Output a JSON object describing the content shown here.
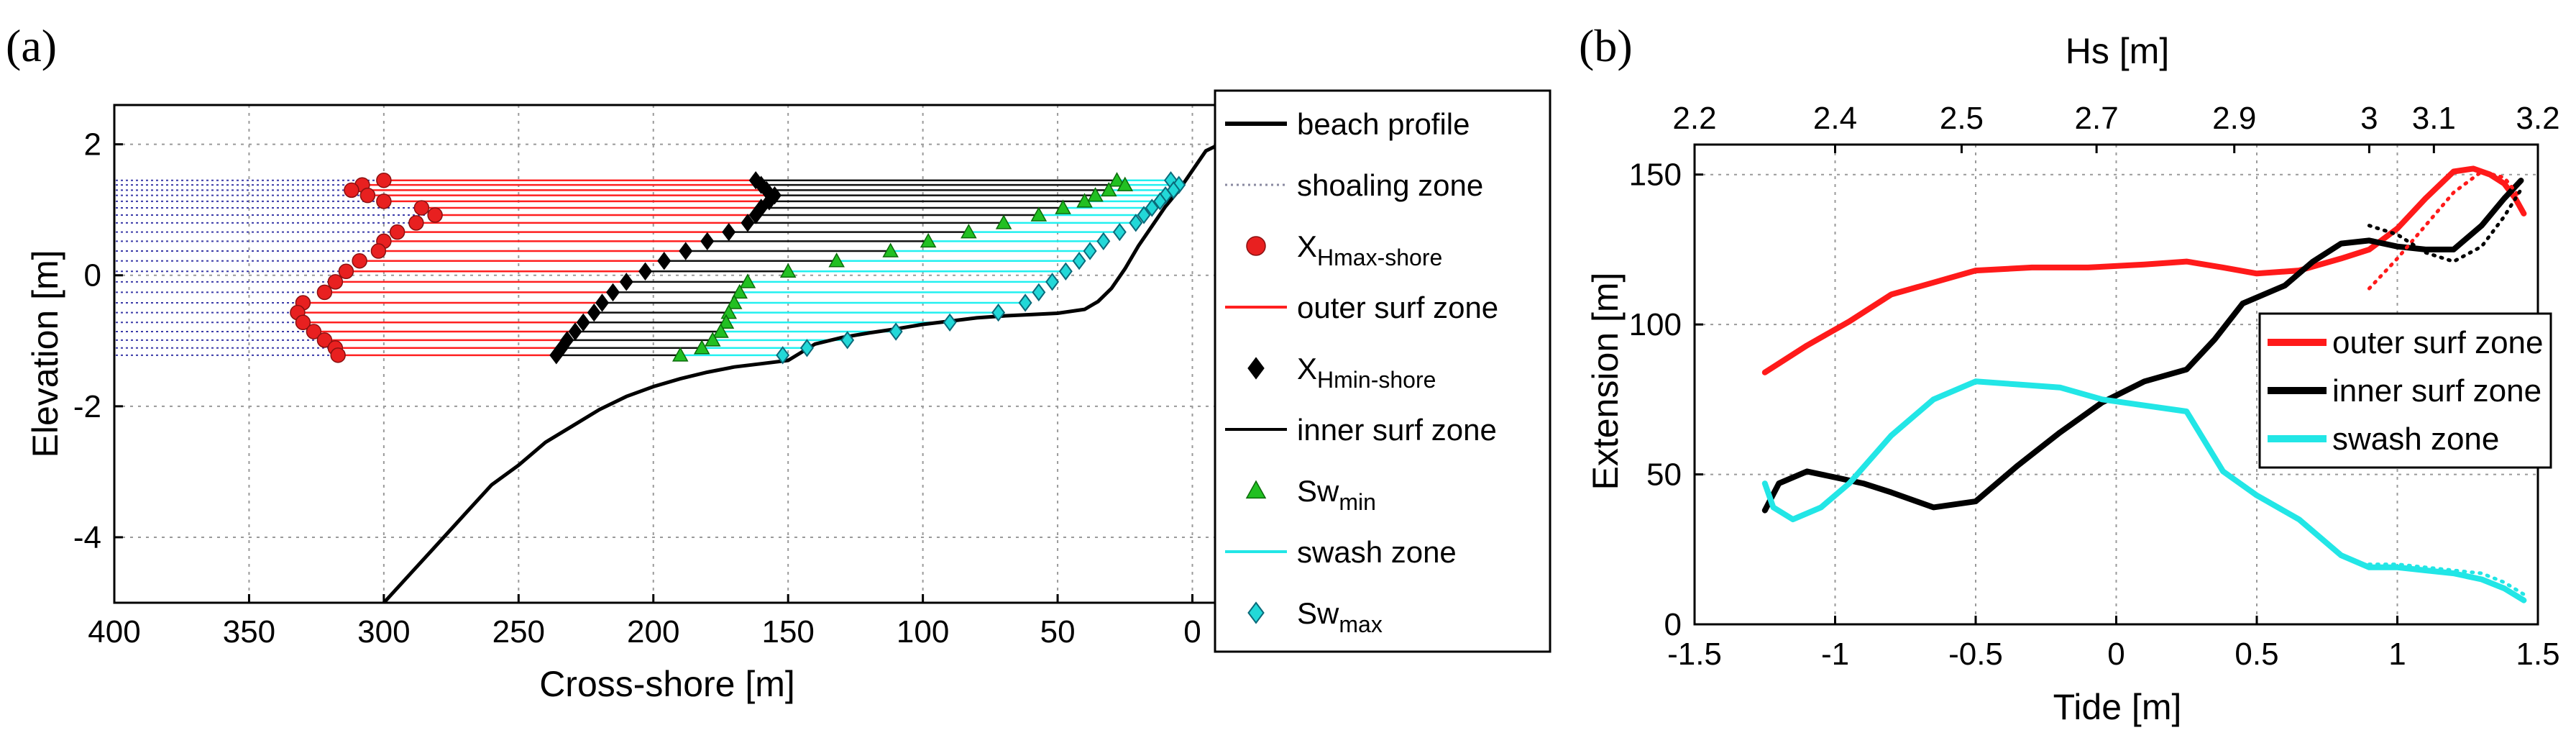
{
  "chart_data": [
    {
      "type": "line",
      "panel_label": "(a)",
      "xlabel": "Cross-shore [m]",
      "ylabel": "Elevation [m]",
      "xlim": [
        400,
        -10
      ],
      "ylim": [
        -5,
        2.6
      ],
      "x_reversed": true,
      "grid": true,
      "xticks": [
        400,
        350,
        300,
        250,
        200,
        150,
        100,
        50,
        0
      ],
      "xtick_labels": [
        "400",
        "350",
        "300",
        "250",
        "200",
        "150",
        "100",
        "50",
        "0"
      ],
      "yticks": [
        2,
        0,
        -2,
        -4
      ],
      "ytick_labels": [
        "2",
        "0",
        "-2",
        "-4"
      ],
      "legend": {
        "placement": "outside-right",
        "entries": [
          {
            "key": "beach_profile",
            "label": "beach profile",
            "style": "line",
            "color": "#000000"
          },
          {
            "key": "shoaling",
            "label": "shoaling zone",
            "style": "dotted",
            "color": "#8a8aa0"
          },
          {
            "key": "xhmax",
            "label": "X",
            "sub": "Hmax-shore",
            "style": "circle",
            "color": "#e82020"
          },
          {
            "key": "outer",
            "label": "outer surf zone",
            "style": "line",
            "color": "#ff2020"
          },
          {
            "key": "xhmin",
            "label": "X",
            "sub": "Hmin-shore",
            "style": "diamond",
            "color": "#000000"
          },
          {
            "key": "inner",
            "label": "inner surf zone",
            "style": "line",
            "color": "#000000"
          },
          {
            "key": "swmin",
            "label": "Sw",
            "sub": "min",
            "style": "triangle",
            "color": "#22c022"
          },
          {
            "key": "swash",
            "label": "swash zone",
            "style": "line",
            "color": "#22e6e6"
          },
          {
            "key": "swmax",
            "label": "Sw",
            "sub": "max",
            "style": "diamond",
            "color": "#22d8d8"
          }
        ]
      },
      "colors": {
        "profile": "#000000",
        "shoaling": "#3a3aa8",
        "outer": "#ff2020",
        "inner": "#111111",
        "swash": "#22f0f0",
        "swmin": "#22c022",
        "swmax": "#22d8d8",
        "xhmax": "#e82020",
        "xhmin": "#000000"
      },
      "beach_profile": {
        "x": [
          300,
          290,
          280,
          270,
          260,
          250,
          240,
          230,
          220,
          210,
          200,
          190,
          180,
          170,
          160,
          150,
          140,
          130,
          120,
          110,
          100,
          90,
          80,
          70,
          60,
          50,
          40,
          35,
          30,
          25,
          20,
          15,
          10,
          5,
          0,
          -5,
          -10
        ],
        "y": [
          -5.0,
          -4.55,
          -4.1,
          -3.65,
          -3.2,
          -2.9,
          -2.55,
          -2.3,
          -2.05,
          -1.85,
          -1.7,
          -1.58,
          -1.48,
          -1.4,
          -1.35,
          -1.3,
          -1.05,
          -0.95,
          -0.88,
          -0.82,
          -0.75,
          -0.7,
          -0.65,
          -0.62,
          -0.6,
          -0.58,
          -0.52,
          -0.4,
          -0.2,
          0.1,
          0.45,
          0.75,
          1.05,
          1.3,
          1.6,
          1.9,
          2.0
        ]
      },
      "zones": {
        "z": [
          1.45,
          1.38,
          1.3,
          1.22,
          1.13,
          1.03,
          0.92,
          0.8,
          0.66,
          0.52,
          0.37,
          0.22,
          0.06,
          -0.1,
          -0.26,
          -0.42,
          -0.57,
          -0.72,
          -0.86,
          -0.99,
          -1.11,
          -1.22
        ],
        "xhmax": [
          300,
          308,
          312,
          306,
          300,
          286,
          281,
          288,
          295,
          300,
          302,
          309,
          314,
          318,
          322,
          330,
          332,
          330,
          326,
          322,
          318,
          317
        ],
        "xhmin": [
          162,
          160,
          158,
          155,
          157,
          160,
          162,
          165,
          172,
          180,
          188,
          196,
          203,
          210,
          215,
          219,
          222,
          226,
          229,
          232,
          234,
          236
        ],
        "swmin": [
          28,
          25,
          31,
          36,
          40,
          48,
          57,
          70,
          83,
          98,
          112,
          132,
          150,
          165,
          168,
          170,
          172,
          173,
          175,
          178,
          182,
          190
        ],
        "swmax": [
          8,
          5,
          7,
          10,
          12,
          15,
          18,
          21,
          27,
          33,
          38,
          42,
          47,
          52,
          57,
          62,
          72,
          90,
          110,
          128,
          143,
          152
        ]
      }
    },
    {
      "type": "line",
      "panel_label": "(b)",
      "xlabel": "Tide [m]",
      "ylabel": "Extension [m]",
      "top_xlabel": "Hs  [m]",
      "xlim": [
        -1.5,
        1.5
      ],
      "ylim": [
        0,
        160
      ],
      "grid": true,
      "xticks": [
        -1.5,
        -1,
        -0.5,
        0,
        0.5,
        1,
        1.5
      ],
      "xtick_labels": [
        "-1.5",
        "-1",
        "-0.5",
        "0",
        "0.5",
        "1",
        "1.5"
      ],
      "yticks": [
        0,
        50,
        100,
        150
      ],
      "ytick_labels": [
        "0",
        "50",
        "100",
        "150"
      ],
      "top_xticks": [
        -1.5,
        -1.0,
        -0.55,
        -0.07,
        0.42,
        0.9,
        1.13,
        1.5
      ],
      "top_xtick_labels": [
        "2.2",
        "2.4",
        "2.5",
        "2.7",
        "2.9",
        "3",
        "3.1",
        "3.2"
      ],
      "legend": {
        "placement": "center-right",
        "entries": [
          {
            "key": "outer",
            "label": "outer surf zone",
            "color": "#ff1a1a"
          },
          {
            "key": "inner",
            "label": "inner surf zone",
            "color": "#000000"
          },
          {
            "key": "swash",
            "label": "swash zone",
            "color": "#22e6e6"
          }
        ]
      },
      "series": [
        {
          "name": "outer surf zone",
          "color": "#ff1a1a",
          "x": [
            -1.25,
            -1.1,
            -0.95,
            -0.8,
            -0.65,
            -0.5,
            -0.3,
            -0.1,
            0.1,
            0.25,
            0.38,
            0.5,
            0.65,
            0.8,
            0.9,
            1.0,
            1.1,
            1.2,
            1.27,
            1.33,
            1.38,
            1.42,
            1.45
          ],
          "y": [
            84,
            93,
            101,
            110,
            114,
            118,
            119,
            119,
            120,
            121,
            119,
            117,
            118,
            122,
            125,
            132,
            142,
            151,
            152,
            150,
            147,
            142,
            137
          ]
        },
        {
          "name": "inner surf zone",
          "color": "#000000",
          "x": [
            -1.25,
            -1.2,
            -1.1,
            -1.0,
            -0.9,
            -0.8,
            -0.65,
            -0.5,
            -0.35,
            -0.2,
            -0.05,
            0.1,
            0.25,
            0.35,
            0.45,
            0.6,
            0.7,
            0.8,
            0.9,
            1.0,
            1.1,
            1.2,
            1.3,
            1.38,
            1.44
          ],
          "y": [
            38,
            47,
            51,
            49,
            47,
            44,
            39,
            41,
            53,
            64,
            74,
            81,
            85,
            95,
            107,
            113,
            121,
            127,
            128,
            126,
            125,
            125,
            133,
            142,
            148
          ]
        },
        {
          "name": "swash zone",
          "color": "#22e6e6",
          "x": [
            -1.25,
            -1.22,
            -1.15,
            -1.05,
            -0.95,
            -0.8,
            -0.65,
            -0.5,
            -0.35,
            -0.2,
            -0.05,
            0.1,
            0.25,
            0.38,
            0.5,
            0.65,
            0.8,
            0.9,
            1.0,
            1.1,
            1.2,
            1.3,
            1.38,
            1.45
          ],
          "y": [
            47,
            39,
            35,
            39,
            47,
            63,
            75,
            81,
            80,
            79,
            75,
            73,
            71,
            51,
            43,
            35,
            23,
            19,
            19,
            18,
            17,
            15,
            12,
            8
          ]
        },
        {
          "name": "outer surf zone (dotted)",
          "color": "#ff1a1a",
          "style": "dotted",
          "legend": false,
          "x": [
            0.9,
            1.0,
            1.1,
            1.2,
            1.3,
            1.38,
            1.44
          ],
          "y": [
            112,
            122,
            133,
            144,
            151,
            149,
            142
          ]
        },
        {
          "name": "inner surf zone (dotted)",
          "color": "#000000",
          "style": "dotted",
          "legend": false,
          "x": [
            0.9,
            1.0,
            1.1,
            1.2,
            1.3,
            1.38,
            1.44
          ],
          "y": [
            133,
            130,
            124,
            121,
            126,
            136,
            145
          ]
        },
        {
          "name": "swash zone (dotted)",
          "color": "#22e6e6",
          "style": "dotted",
          "legend": false,
          "x": [
            0.9,
            1.0,
            1.1,
            1.2,
            1.3,
            1.38,
            1.45
          ],
          "y": [
            20,
            20,
            19,
            18,
            17,
            14,
            10
          ]
        }
      ]
    }
  ]
}
